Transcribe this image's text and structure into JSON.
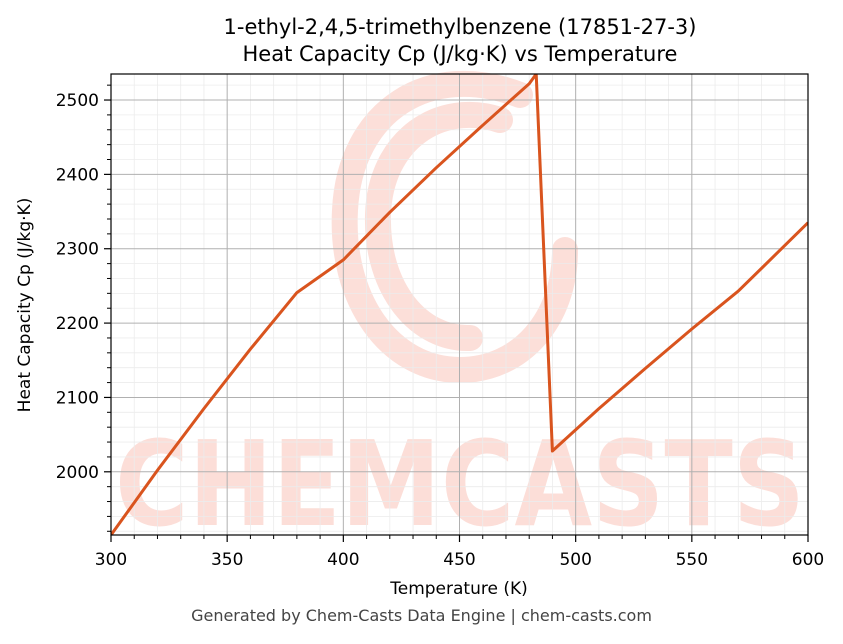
{
  "chart_data": {
    "type": "line",
    "title_lines": [
      "1-ethyl-2,4,5-trimethylbenzene (17851-27-3)",
      "Heat Capacity Cp (J/kg·K) vs Temperature"
    ],
    "xlabel": "Temperature (K)",
    "ylabel": "Heat Capacity Cp (J/kg·K)",
    "xlim": [
      300,
      600
    ],
    "ylim": [
      1915,
      2535
    ],
    "x_ticks": [
      300,
      350,
      400,
      450,
      500,
      550,
      600
    ],
    "y_ticks": [
      2000,
      2100,
      2200,
      2300,
      2400,
      2500
    ],
    "grid": true,
    "series": [
      {
        "color": "#d9541e",
        "points": [
          [
            300,
            1915
          ],
          [
            320,
            2002
          ],
          [
            340,
            2085
          ],
          [
            360,
            2165
          ],
          [
            380,
            2241
          ],
          [
            400,
            2285
          ],
          [
            420,
            2349
          ],
          [
            440,
            2409
          ],
          [
            460,
            2466
          ],
          [
            480,
            2522
          ],
          [
            483,
            2535
          ],
          [
            490,
            2028
          ],
          [
            510,
            2085
          ],
          [
            530,
            2139
          ],
          [
            550,
            2192
          ],
          [
            570,
            2243
          ],
          [
            600,
            2335
          ]
        ]
      }
    ]
  },
  "watermark": {
    "text": "CHEMCASTS",
    "color": "#fcd9d2"
  },
  "footer": "Generated by Chem-Casts Data Engine | chem-casts.com"
}
